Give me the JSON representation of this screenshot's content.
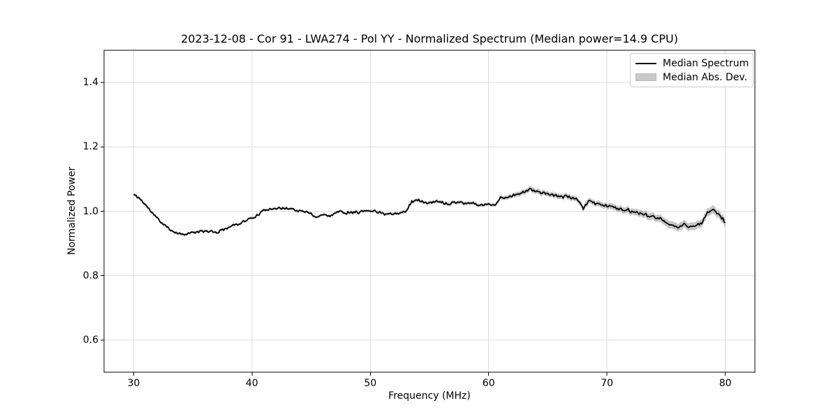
{
  "chart_data": {
    "type": "line",
    "title": "2023-12-08 - Cor 91 - LWA274 - Pol YY - Normalized Spectrum (Median power=14.9 CPU)",
    "xlabel": "Frequency (MHz)",
    "ylabel": "Normalized Power",
    "xlim": [
      27.5,
      82.5
    ],
    "ylim": [
      0.5,
      1.5
    ],
    "xticks": [
      30,
      40,
      50,
      60,
      70,
      80
    ],
    "xtick_labels": [
      "30",
      "40",
      "50",
      "60",
      "70",
      "80"
    ],
    "yticks": [
      0.6,
      0.8,
      1.0,
      1.2,
      1.4
    ],
    "ytick_labels": [
      "0.6",
      "0.8",
      "1.0",
      "1.2",
      "1.4"
    ],
    "grid": true,
    "legend": {
      "position": "upper right",
      "entries": [
        {
          "label": "Median Spectrum",
          "type": "line",
          "color": "#000000"
        },
        {
          "label": "Median Abs. Dev.",
          "type": "patch",
          "color": "#c8c8c8"
        }
      ]
    },
    "colors": {
      "line": "#000000",
      "band": "#808080",
      "band_opacity": 0.45,
      "grid": "#dcdcdc",
      "spine": "#000000"
    },
    "series": [
      {
        "name": "Median Spectrum",
        "x": [
          30,
          30.5,
          31,
          31.5,
          32,
          32.5,
          33,
          33.5,
          34,
          34.5,
          35,
          35.5,
          36,
          36.5,
          37,
          37.5,
          38,
          38.5,
          39,
          39.5,
          40,
          40.5,
          41,
          41.5,
          42,
          42.5,
          43,
          43.5,
          44,
          44.5,
          45,
          45.5,
          46,
          46.5,
          47,
          47.5,
          48,
          48.5,
          49,
          49.5,
          50,
          50.5,
          51,
          51.5,
          52,
          52.5,
          53,
          53.5,
          54,
          54.5,
          55,
          55.5,
          56,
          56.5,
          57,
          57.5,
          58,
          58.5,
          59,
          59.5,
          60,
          60.5,
          61,
          61.5,
          62,
          62.5,
          63,
          63.5,
          64,
          64.5,
          65,
          65.5,
          66,
          66.5,
          67,
          67.5,
          68,
          68.5,
          69,
          69.5,
          70,
          70.5,
          71,
          71.5,
          72,
          72.5,
          73,
          73.5,
          74,
          74.5,
          75,
          75.5,
          76,
          76.5,
          77,
          77.5,
          78,
          78.5,
          79,
          79.5,
          80
        ],
        "y": [
          1.052,
          1.04,
          1.02,
          0.998,
          0.978,
          0.96,
          0.945,
          0.935,
          0.929,
          0.93,
          0.934,
          0.936,
          0.938,
          0.937,
          0.933,
          0.942,
          0.95,
          0.957,
          0.963,
          0.972,
          0.979,
          0.988,
          1.002,
          1.008,
          1.01,
          1.008,
          1.01,
          1.006,
          1.0,
          0.998,
          0.993,
          0.98,
          0.992,
          0.984,
          0.995,
          1.0,
          0.994,
          1.0,
          0.997,
          1.001,
          1.003,
          0.999,
          0.996,
          0.992,
          0.993,
          0.997,
          0.999,
          1.03,
          1.035,
          1.029,
          1.024,
          1.031,
          1.028,
          1.024,
          1.027,
          1.03,
          1.024,
          1.027,
          1.021,
          1.019,
          1.022,
          1.019,
          1.04,
          1.043,
          1.049,
          1.054,
          1.06,
          1.068,
          1.063,
          1.057,
          1.053,
          1.05,
          1.046,
          1.048,
          1.041,
          1.036,
          1.008,
          1.033,
          1.026,
          1.021,
          1.017,
          1.013,
          1.008,
          1.004,
          0.999,
          0.995,
          0.99,
          0.985,
          0.98,
          0.975,
          0.966,
          0.956,
          0.948,
          0.96,
          0.95,
          0.956,
          0.962,
          0.998,
          1.003,
          0.99,
          0.962
        ]
      },
      {
        "name": "Median Abs. Dev. (half-width)",
        "x": [
          30,
          33,
          36,
          40,
          45,
          50,
          53,
          55,
          58,
          60,
          62,
          64,
          66,
          68,
          70,
          72,
          74,
          76,
          78,
          80
        ],
        "y": [
          0.005,
          0.004,
          0.004,
          0.004,
          0.004,
          0.004,
          0.005,
          0.005,
          0.005,
          0.005,
          0.007,
          0.008,
          0.008,
          0.008,
          0.009,
          0.01,
          0.011,
          0.012,
          0.012,
          0.013
        ]
      }
    ],
    "noise": {
      "seed": 11,
      "amplitude": 0.0035,
      "step_mhz": 0.1
    }
  }
}
